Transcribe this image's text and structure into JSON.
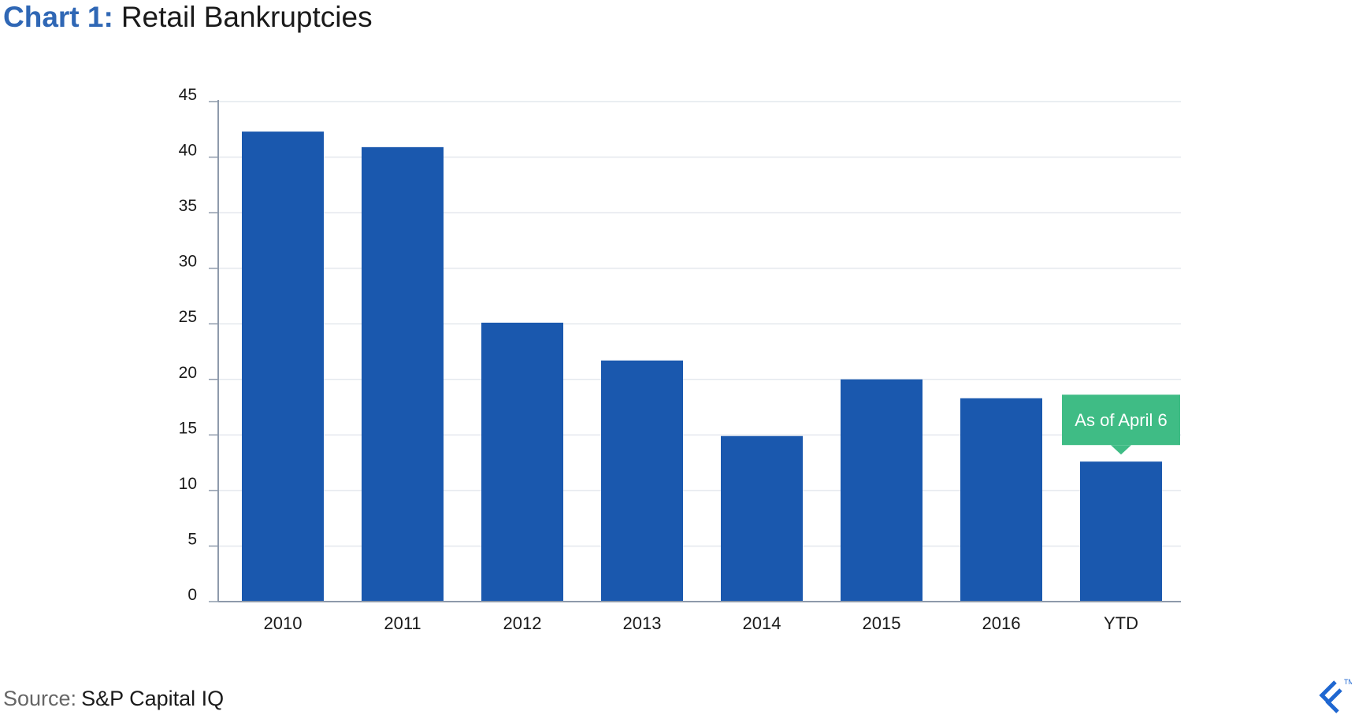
{
  "header": {
    "prefix": "Chart 1:",
    "title": "Retail Bankruptcies"
  },
  "footer": {
    "source_label": "Source:",
    "source_value": "S&P Capital IQ",
    "logo_icon": "toptal-logo-icon",
    "logo_mark": "TM"
  },
  "colors": {
    "bar": "#1a58ae",
    "callout": "#3fbc85",
    "title_accent": "#2f67b5",
    "grid": "#e4e8ee",
    "axis": "#8e9aab"
  },
  "chart_data": {
    "type": "bar",
    "categories": [
      "2010",
      "2011",
      "2012",
      "2013",
      "2014",
      "2015",
      "2016",
      "YTD"
    ],
    "values": [
      42.3,
      40.9,
      25.1,
      21.7,
      14.9,
      20.0,
      18.3,
      12.6
    ],
    "title": "",
    "xlabel": "",
    "ylabel": "",
    "ylim": [
      0,
      45
    ],
    "yticks": [
      0,
      5,
      10,
      15,
      20,
      25,
      30,
      35,
      40,
      45
    ],
    "grid": true,
    "annotations": [
      {
        "category": "YTD",
        "text": "As of April 6"
      }
    ]
  }
}
